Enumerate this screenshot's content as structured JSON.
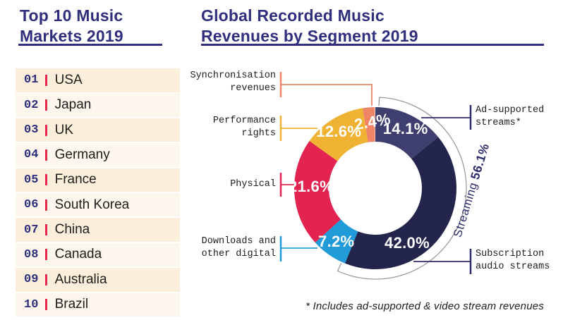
{
  "left_panel": {
    "title_lines": [
      "Top 10 Music",
      "Markets 2019"
    ],
    "markets": [
      {
        "rank": "01",
        "name": "USA"
      },
      {
        "rank": "02",
        "name": "Japan"
      },
      {
        "rank": "03",
        "name": "UK"
      },
      {
        "rank": "04",
        "name": "Germany"
      },
      {
        "rank": "05",
        "name": "France"
      },
      {
        "rank": "06",
        "name": "South Korea"
      },
      {
        "rank": "07",
        "name": "China"
      },
      {
        "rank": "08",
        "name": "Canada"
      },
      {
        "rank": "09",
        "name": "Australia"
      },
      {
        "rank": "10",
        "name": "Brazil"
      }
    ]
  },
  "chart_panel": {
    "title_lines": [
      "Global Recorded Music",
      "Revenues by Segment 2019"
    ],
    "footnote": "* Includes ad-supported & video stream revenues"
  },
  "chart_data": {
    "type": "pie",
    "donut": true,
    "title": "Global Recorded Music Revenues by Segment 2019",
    "start_angle_deg": 0,
    "direction": "clockwise",
    "segments": [
      {
        "label": "Ad-supported streams*",
        "value": 14.1,
        "pct_label": "14.1%",
        "color": "#3e3f6e"
      },
      {
        "label": "Subscription audio streams",
        "value": 42.0,
        "pct_label": "42.0%",
        "color": "#23254d"
      },
      {
        "label": "Downloads and other digital",
        "value": 7.2,
        "pct_label": "7.2%",
        "color": "#209bd8"
      },
      {
        "label": "Physical",
        "value": 21.6,
        "pct_label": "21.6%",
        "color": "#e32450"
      },
      {
        "label": "Performance rights",
        "value": 12.6,
        "pct_label": "12.6%",
        "color": "#efb232"
      },
      {
        "label": "Synchronisation revenues",
        "value": 2.4,
        "pct_label": "2.4%",
        "color": "#ef8566"
      }
    ],
    "annotation": {
      "group_label": "Streaming",
      "group_value": "56.1%",
      "group_total": 56.1
    },
    "footnote": "* Includes ad-supported & video stream revenues"
  },
  "callouts": [
    {
      "id": "synchronisation",
      "lines": [
        "Synchronisation",
        "revenues"
      ],
      "color": "#ef8566"
    },
    {
      "id": "performance",
      "lines": [
        "Performance",
        "rights"
      ],
      "color": "#efb232"
    },
    {
      "id": "physical",
      "lines": [
        "Physical",
        ""
      ],
      "color": "#e32450"
    },
    {
      "id": "downloads",
      "lines": [
        "Downloads and",
        "other digital"
      ],
      "color": "#209bd8"
    },
    {
      "id": "ad-supported",
      "lines": [
        "Ad-supported",
        "streams*"
      ],
      "color": "#2d2d6b"
    },
    {
      "id": "subscription",
      "lines": [
        "Subscription",
        "audio streams"
      ],
      "color": "#2d2d6b"
    }
  ]
}
